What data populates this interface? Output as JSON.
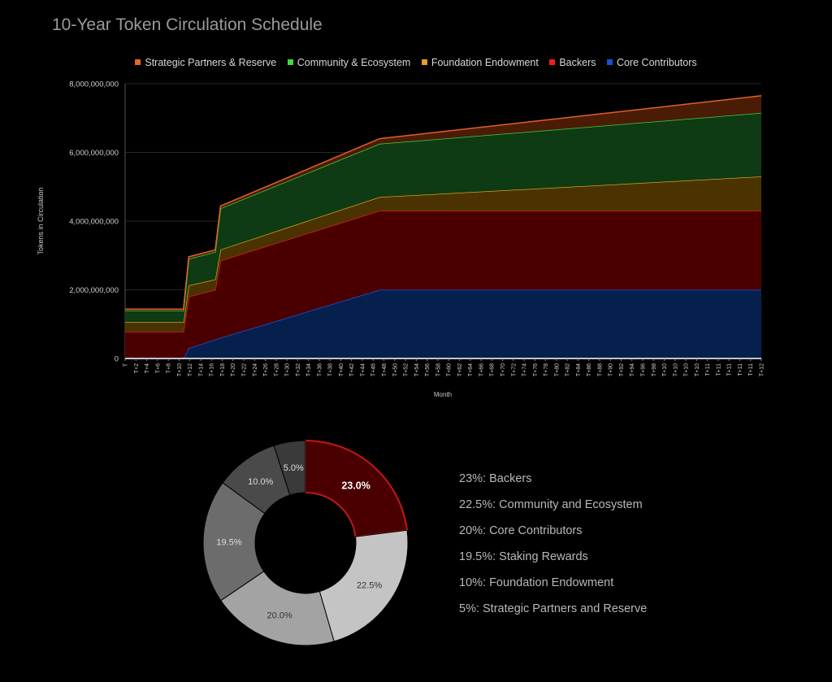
{
  "title": "10-Year Token Circulation Schedule",
  "legend": [
    {
      "label": "Strategic Partners & Reserve",
      "color": "#e8642c"
    },
    {
      "label": "Community & Ecosystem",
      "color": "#3ddc3d"
    },
    {
      "label": "Foundation Endowment",
      "color": "#e0a020"
    },
    {
      "label": "Backers",
      "color": "#e82020"
    },
    {
      "label": "Core Contributors",
      "color": "#1a4fd8"
    }
  ],
  "chart_data": [
    {
      "type": "area",
      "stacked": true,
      "xlabel": "Month",
      "ylabel": "Tokens in Circulation",
      "ylim": [
        0,
        8000000000
      ],
      "yticks": [
        "0",
        "2,000,000,000",
        "4,000,000,000",
        "6,000,000,000",
        "8,000,000,000"
      ],
      "xticks": [
        "T",
        "T+2",
        "T+4",
        "T+6",
        "T+8",
        "T+10",
        "T+12",
        "T+14",
        "T+16",
        "T+18",
        "T+20",
        "T+22",
        "T+24",
        "T+26",
        "T+28",
        "T+30",
        "T+32",
        "T+34",
        "T+36",
        "T+38",
        "T+40",
        "T+42",
        "T+44",
        "T+46",
        "T+48",
        "T+50",
        "T+52",
        "T+54",
        "T+56",
        "T+58",
        "T+60",
        "T+62",
        "T+64",
        "T+66",
        "T+68",
        "T+70",
        "T+72",
        "T+74",
        "T+76",
        "T+78",
        "T+80",
        "T+82",
        "T+84",
        "T+86",
        "T+88",
        "T+90",
        "T+92",
        "T+94",
        "T+96",
        "T+98",
        "T+10",
        "T+10",
        "T+10",
        "T+10",
        "T+11",
        "T+11",
        "T+11",
        "T+11",
        "T+11",
        "T+12"
      ],
      "x_months": [
        0,
        11,
        12,
        17,
        18,
        48,
        120
      ],
      "series": [
        {
          "name": "Core Contributors",
          "color": "#06204d",
          "line": "#1f52d8",
          "values": [
            0,
            0,
            300000000,
            550000000,
            600000000,
            2000000000,
            2000000000
          ]
        },
        {
          "name": "Backers",
          "color": "#4b0000",
          "line": "#d42020",
          "values": [
            780000000,
            780000000,
            1500000000,
            1450000000,
            2250000000,
            2300000000,
            2300000000
          ]
        },
        {
          "name": "Foundation Endowment",
          "color": "#4a3300",
          "line": "#d4a020",
          "values": [
            280000000,
            280000000,
            330000000,
            300000000,
            320000000,
            400000000,
            1000000000
          ]
        },
        {
          "name": "Community & Ecosystem",
          "color": "#0e3a14",
          "line": "#3fcf3f",
          "values": [
            330000000,
            330000000,
            770000000,
            800000000,
            1200000000,
            1550000000,
            1850000000
          ]
        },
        {
          "name": "Strategic Partners & Reserve",
          "color": "#4a1c06",
          "line": "#e06028",
          "values": [
            50000000,
            50000000,
            60000000,
            60000000,
            70000000,
            150000000,
            500000000
          ]
        }
      ]
    },
    {
      "type": "pie",
      "donut": true,
      "slices": [
        {
          "label": "23.0%",
          "value": 23.0,
          "color": "#4a0000",
          "stroke": "#c01818",
          "text_color": "#ffffff",
          "bold": true
        },
        {
          "label": "22.5%",
          "value": 22.5,
          "color": "#c4c4c4",
          "stroke": "#000000",
          "text_color": "#333333",
          "bold": false
        },
        {
          "label": "20.0%",
          "value": 20.0,
          "color": "#a3a3a3",
          "stroke": "#000000",
          "text_color": "#333333",
          "bold": false
        },
        {
          "label": "19.5%",
          "value": 19.5,
          "color": "#6c6c6c",
          "stroke": "#000000",
          "text_color": "#dddddd",
          "bold": false
        },
        {
          "label": "10.0%",
          "value": 10.0,
          "color": "#4a4a4a",
          "stroke": "#000000",
          "text_color": "#dddddd",
          "bold": false
        },
        {
          "label": "5.0%",
          "value": 5.0,
          "color": "#3a3a3a",
          "stroke": "#000000",
          "text_color": "#dddddd",
          "bold": false
        }
      ]
    }
  ],
  "breakdown": [
    "23%: Backers",
    "22.5%: Community and Ecosystem",
    "20%: Core Contributors",
    "19.5%: Staking Rewards",
    "10%: Foundation Endowment",
    "5%: Strategic Partners and Reserve"
  ]
}
